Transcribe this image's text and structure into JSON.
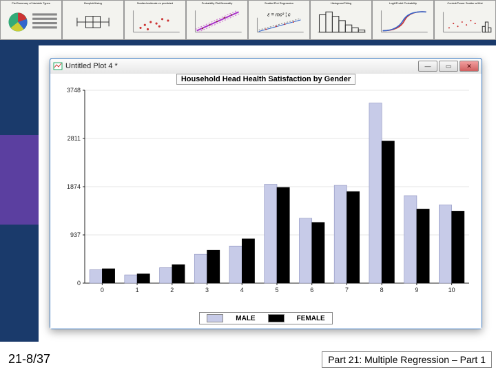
{
  "slide": {
    "footer_left": "21-8/37",
    "footer_right": "Part 21: Multiple Regression – Part 1",
    "sidebar_colors": [
      "#1a3a6b",
      "#5b3fa0",
      "#1a3a6b"
    ],
    "strip_underline_color": "#1a3a6b"
  },
  "thumbnails": [
    {
      "title": "Pie/Summary of Variable Types"
    },
    {
      "title": "Boxplot/Histog"
    },
    {
      "title": "Scatter/residuals vs predicted"
    },
    {
      "title": "Probability Plot/Normality"
    },
    {
      "title": "Scatter/Plot Regression"
    },
    {
      "title": "Histogram/Fitting"
    },
    {
      "title": "Logit/Probit Probability"
    },
    {
      "title": "Control/Power Scatter w/Hist"
    }
  ],
  "window": {
    "title": "Untitled Plot 4 *",
    "border_color": "#3a79c0",
    "background": "#f4f4f4"
  },
  "chart": {
    "type": "grouped-bar",
    "title": "Household Head Health Satisfaction by Gender",
    "title_fontsize": 11,
    "background_color": "#ffffff",
    "grid_color": "#e6e6e6",
    "axis_color": "#222222",
    "x": {
      "categories": [
        "0",
        "1",
        "2",
        "3",
        "4",
        "5",
        "6",
        "7",
        "8",
        "9",
        "10"
      ],
      "label_fontsize": 9
    },
    "y": {
      "min": 0,
      "max": 3748,
      "ticks": [
        0,
        937,
        1874,
        2811,
        3748
      ],
      "label_fontsize": 9
    },
    "series": [
      {
        "name": "MALE",
        "color": "#c7cbe8",
        "border": "#8a8fbd",
        "values": [
          260,
          160,
          300,
          560,
          720,
          1920,
          1260,
          1900,
          3500,
          1700,
          1520
        ]
      },
      {
        "name": "FEMALE",
        "color": "#000000",
        "border": "#000000",
        "values": [
          280,
          180,
          360,
          640,
          860,
          1860,
          1180,
          1780,
          2760,
          1440,
          1400
        ]
      }
    ],
    "bar_group_width": 0.72,
    "legend": {
      "position": "bottom",
      "box_border": "#888888",
      "fontsize": 10
    }
  }
}
